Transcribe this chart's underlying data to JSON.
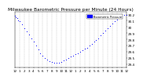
{
  "title": "Milwaukee Barometric Pressure per Minute (24 Hours)",
  "title_fontsize": 4.2,
  "dot_color": "#0000ff",
  "dot_size": 0.5,
  "legend_label": "Barometric Pressure",
  "legend_color": "#0000ff",
  "background_color": "#ffffff",
  "grid_color": "#bbbbbb",
  "tick_color": "#000000",
  "tick_fontsize": 3.0,
  "ylim": [
    29.35,
    30.25
  ],
  "yticks": [
    29.4,
    29.5,
    29.6,
    29.7,
    29.8,
    29.9,
    30.0,
    30.1,
    30.2
  ],
  "ytick_labels": [
    "29.4",
    "29.5",
    "29.6",
    "29.7",
    "29.8",
    "29.9",
    "30",
    "30.1",
    "30.2"
  ],
  "xlim": [
    0,
    1440
  ],
  "xticks": [
    0,
    60,
    120,
    180,
    240,
    300,
    360,
    420,
    480,
    540,
    600,
    660,
    720,
    780,
    840,
    900,
    960,
    1020,
    1080,
    1140,
    1200,
    1260,
    1320,
    1380,
    1440
  ],
  "xtick_labels": [
    "12",
    "1",
    "2",
    "3",
    "4",
    "5",
    "6",
    "7",
    "8",
    "9",
    "10",
    "11",
    "12",
    "1",
    "2",
    "3",
    "4",
    "5",
    "6",
    "7",
    "8",
    "9",
    "10",
    "11",
    "12"
  ],
  "data_x": [
    0,
    15,
    30,
    45,
    60,
    90,
    120,
    150,
    180,
    210,
    240,
    270,
    300,
    330,
    360,
    390,
    420,
    450,
    480,
    510,
    540,
    570,
    600,
    630,
    660,
    690,
    720,
    750,
    780,
    810,
    840,
    870,
    900,
    930,
    960,
    990,
    1020,
    1050,
    1080,
    1110,
    1140,
    1170,
    1200,
    1230,
    1260,
    1290,
    1320,
    1350,
    1380,
    1410,
    1440
  ],
  "data_y": [
    30.18,
    30.16,
    30.14,
    30.11,
    30.09,
    30.04,
    29.98,
    29.93,
    29.88,
    29.82,
    29.76,
    29.7,
    29.64,
    29.58,
    29.54,
    29.5,
    29.47,
    29.45,
    29.44,
    29.43,
    29.42,
    29.42,
    29.44,
    29.46,
    29.48,
    29.5,
    29.52,
    29.54,
    29.56,
    29.58,
    29.6,
    29.63,
    29.65,
    29.67,
    29.7,
    29.73,
    29.76,
    29.79,
    29.82,
    29.86,
    29.9,
    29.94,
    29.98,
    30.02,
    30.05,
    30.09,
    30.12,
    30.15,
    30.17,
    30.19,
    30.2
  ]
}
